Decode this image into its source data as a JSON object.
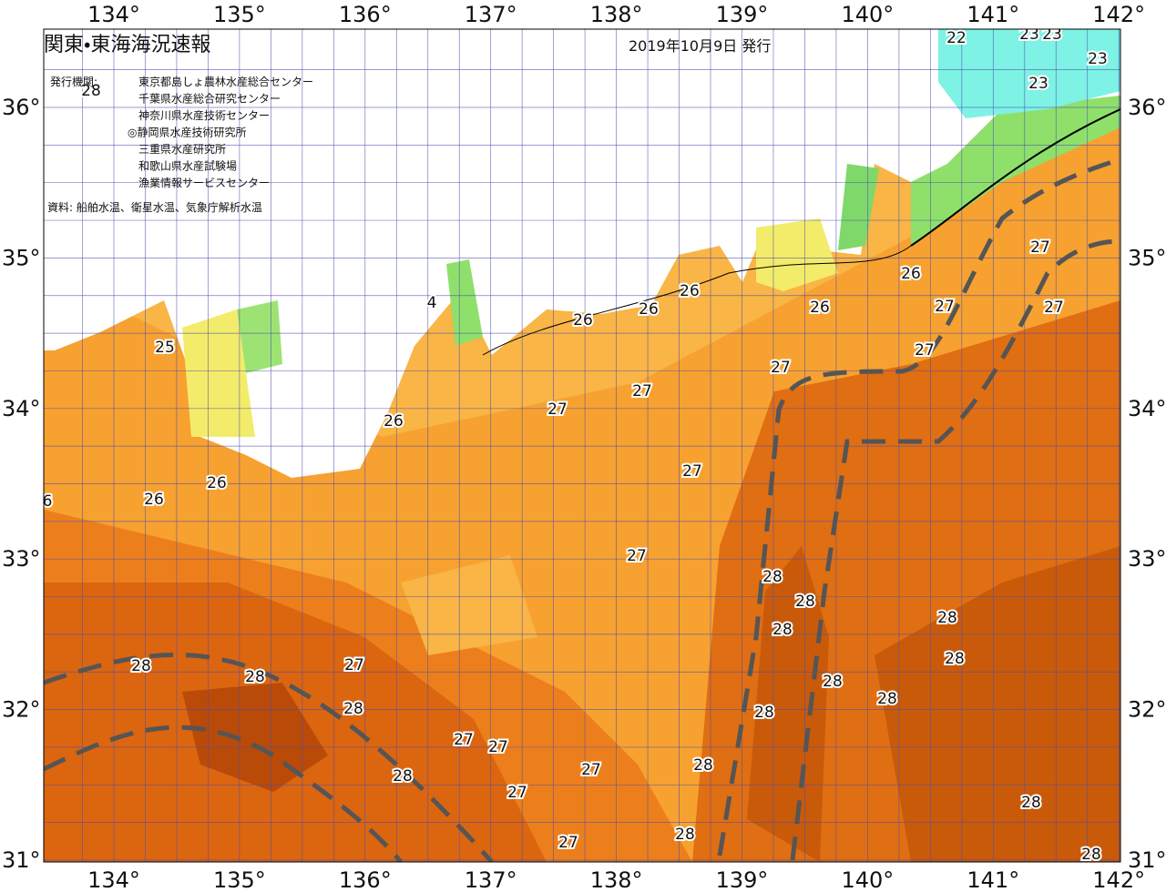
{
  "header": {
    "title": "関東・東海海況速報",
    "date": "2019年10月9日 発行"
  },
  "issuers": {
    "label": "発行機関:",
    "names": [
      "東京都島しょ農林水産総合センター",
      "千葉県水産総合研究センター",
      "神奈川県水産技術センター",
      "◎静岡県水産技術研究所",
      "三重県水産研究所",
      "和歌山県水産試験場",
      "漁業情報サービスセンター"
    ]
  },
  "source": "資料: 船舶水温、衛星水温、気象庁解析水温",
  "axes": {
    "longitude_labels": [
      "134°",
      "135°",
      "136°",
      "137°",
      "138°",
      "139°",
      "140°",
      "141°",
      "142°"
    ],
    "latitude_labels": [
      "36°",
      "35°",
      "34°",
      "33°",
      "32°",
      "31°"
    ]
  },
  "contour_labels": [
    22,
    23,
    23,
    23,
    23,
    25,
    26,
    26,
    26,
    26,
    26,
    26,
    26,
    26,
    4,
    6,
    27,
    27,
    27,
    27,
    27,
    27,
    27,
    27,
    27,
    27,
    27,
    27,
    27,
    27,
    27,
    27,
    28,
    28,
    28,
    28,
    28,
    28,
    28,
    28,
    28,
    28,
    28,
    28,
    28,
    28,
    28,
    28,
    28,
    28
  ]
}
